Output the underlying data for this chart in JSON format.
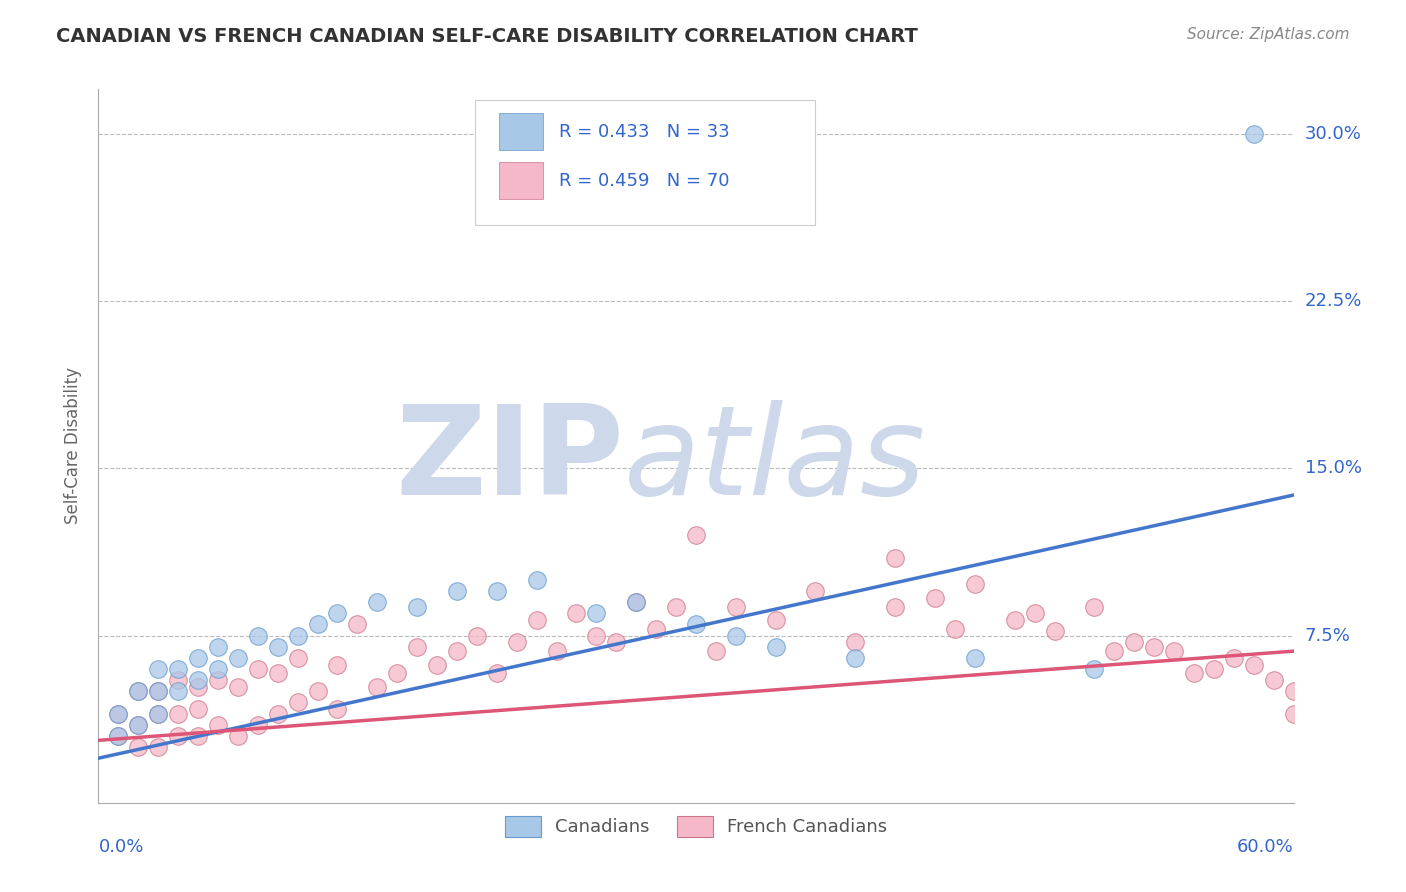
{
  "title": "CANADIAN VS FRENCH CANADIAN SELF-CARE DISABILITY CORRELATION CHART",
  "source": "Source: ZipAtlas.com",
  "ylabel": "Self-Care Disability",
  "ylabel_ticks": [
    0.0,
    0.075,
    0.15,
    0.225,
    0.3
  ],
  "ylabel_tick_labels": [
    "",
    "7.5%",
    "15.0%",
    "22.5%",
    "30.0%"
  ],
  "xlim": [
    0.0,
    0.6
  ],
  "ylim": [
    0.0,
    0.32
  ],
  "background_color": "#ffffff",
  "grid_color": "#bbbbbb",
  "watermark_zip": "ZIP",
  "watermark_atlas": "atlas",
  "watermark_color": "#cdd8ea",
  "canadians_color": "#a8c8e8",
  "canadians_edge": "#6699cc",
  "french_color": "#f5b8c8",
  "french_edge": "#cc7788",
  "line_blue": "#4477cc",
  "line_pink": "#dd5577",
  "R_canadian": 0.433,
  "N_canadian": 33,
  "R_french": 0.459,
  "N_french": 70,
  "legend_text_color": "#3366cc",
  "title_color": "#333333",
  "axis_label_color": "#3366cc",
  "blue_line_start_y": 0.02,
  "blue_line_end_y": 0.138,
  "pink_line_start_y": 0.028,
  "pink_line_end_y": 0.068,
  "canadians_x": [
    0.01,
    0.01,
    0.02,
    0.02,
    0.03,
    0.03,
    0.03,
    0.04,
    0.04,
    0.05,
    0.05,
    0.06,
    0.06,
    0.07,
    0.08,
    0.09,
    0.1,
    0.11,
    0.12,
    0.14,
    0.16,
    0.18,
    0.2,
    0.22,
    0.25,
    0.27,
    0.3,
    0.32,
    0.34,
    0.38,
    0.44,
    0.5,
    0.58
  ],
  "canadians_y": [
    0.03,
    0.04,
    0.035,
    0.05,
    0.04,
    0.05,
    0.06,
    0.05,
    0.06,
    0.055,
    0.065,
    0.06,
    0.07,
    0.065,
    0.075,
    0.07,
    0.075,
    0.08,
    0.085,
    0.09,
    0.088,
    0.095,
    0.095,
    0.1,
    0.085,
    0.09,
    0.08,
    0.075,
    0.07,
    0.065,
    0.065,
    0.06,
    0.3
  ],
  "french_x": [
    0.01,
    0.01,
    0.02,
    0.02,
    0.02,
    0.03,
    0.03,
    0.03,
    0.04,
    0.04,
    0.04,
    0.05,
    0.05,
    0.05,
    0.06,
    0.06,
    0.07,
    0.07,
    0.08,
    0.08,
    0.09,
    0.09,
    0.1,
    0.1,
    0.11,
    0.12,
    0.12,
    0.13,
    0.14,
    0.15,
    0.16,
    0.17,
    0.18,
    0.19,
    0.2,
    0.21,
    0.22,
    0.23,
    0.24,
    0.25,
    0.26,
    0.27,
    0.28,
    0.29,
    0.3,
    0.31,
    0.32,
    0.34,
    0.36,
    0.38,
    0.4,
    0.42,
    0.44,
    0.46,
    0.48,
    0.5,
    0.52,
    0.54,
    0.56,
    0.58,
    0.59,
    0.6,
    0.4,
    0.43,
    0.47,
    0.51,
    0.53,
    0.55,
    0.57,
    0.6
  ],
  "french_y": [
    0.03,
    0.04,
    0.025,
    0.035,
    0.05,
    0.025,
    0.04,
    0.05,
    0.03,
    0.04,
    0.055,
    0.03,
    0.042,
    0.052,
    0.035,
    0.055,
    0.03,
    0.052,
    0.035,
    0.06,
    0.04,
    0.058,
    0.045,
    0.065,
    0.05,
    0.042,
    0.062,
    0.08,
    0.052,
    0.058,
    0.07,
    0.062,
    0.068,
    0.075,
    0.058,
    0.072,
    0.082,
    0.068,
    0.085,
    0.075,
    0.072,
    0.09,
    0.078,
    0.088,
    0.12,
    0.068,
    0.088,
    0.082,
    0.095,
    0.072,
    0.088,
    0.092,
    0.098,
    0.082,
    0.077,
    0.088,
    0.072,
    0.068,
    0.06,
    0.062,
    0.055,
    0.05,
    0.11,
    0.078,
    0.085,
    0.068,
    0.07,
    0.058,
    0.065,
    0.04
  ]
}
